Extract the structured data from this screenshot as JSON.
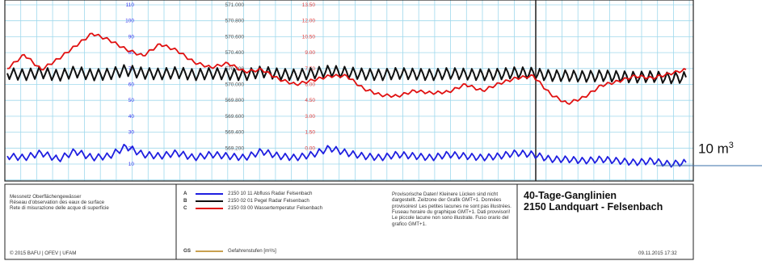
{
  "chart_data": {
    "type": "line",
    "title": "40-Tage-Ganglinien",
    "subtitle": "2150 Landquart - Felsenbach",
    "left_axis_ticks": [
      "110",
      "100",
      "90",
      "80",
      "70",
      "60",
      "50",
      "40",
      "30",
      "20",
      "10"
    ],
    "middle_axis_ticks": [
      "571.000",
      "570.800",
      "570.600",
      "570.400",
      "570.200",
      "570.000",
      "569.800",
      "569.600",
      "569.400",
      "569.200"
    ],
    "right_axis_ticks": [
      "13.50",
      "12.00",
      "10.50",
      "9.00",
      "7.50",
      "6.00",
      "4.50",
      "3.00",
      "1.50",
      "0.00"
    ],
    "x_range": [
      0,
      40
    ],
    "left_ylim": [
      0,
      110
    ],
    "series": [
      {
        "name": "2150 10 11 Abfluss Radar Felsenbach",
        "color": "#1f1fe0",
        "axis": "left",
        "x": [
          0,
          1,
          2,
          3,
          4,
          5,
          6,
          7,
          8,
          9,
          10,
          11,
          12,
          13,
          14,
          15,
          16,
          17,
          18,
          19,
          20,
          21,
          22,
          23,
          24,
          25,
          26,
          27,
          28,
          29,
          30,
          31,
          32,
          33,
          34,
          35,
          36,
          37,
          38,
          39,
          40
        ],
        "values": [
          15,
          14,
          17,
          13,
          18,
          14,
          15,
          21,
          16,
          15,
          17,
          14,
          16,
          15,
          14,
          18,
          15,
          14,
          16,
          20,
          17,
          15,
          14,
          16,
          15,
          14,
          16,
          15,
          14,
          15,
          17,
          16,
          13,
          13,
          12,
          13,
          12,
          11,
          12,
          10,
          11
        ]
      },
      {
        "name": "2150 02 01 Pegel Radar Felsenbach",
        "color": "#111111",
        "axis": "middle",
        "x": [
          0,
          1,
          2,
          3,
          4,
          5,
          6,
          7,
          8,
          9,
          10,
          11,
          12,
          13,
          14,
          15,
          16,
          17,
          18,
          19,
          20,
          21,
          22,
          23,
          24,
          25,
          26,
          27,
          28,
          29,
          30,
          31,
          32,
          33,
          34,
          35,
          36,
          37,
          38,
          39,
          40
        ],
        "values": [
          570.14,
          570.12,
          570.15,
          570.11,
          570.16,
          570.12,
          570.13,
          570.18,
          570.14,
          570.13,
          570.15,
          570.12,
          570.14,
          570.13,
          570.12,
          570.16,
          570.13,
          570.12,
          570.14,
          570.17,
          570.15,
          570.13,
          570.12,
          570.14,
          570.13,
          570.12,
          570.14,
          570.13,
          570.12,
          570.13,
          570.15,
          570.14,
          570.11,
          570.11,
          570.1,
          570.11,
          570.1,
          570.09,
          570.1,
          570.08,
          570.09
        ]
      },
      {
        "name": "2150 03 00 Wassertemperatur Felsenbach",
        "color": "#e01010",
        "axis": "right",
        "x": [
          0,
          1,
          2,
          3,
          4,
          5,
          6,
          7,
          8,
          9,
          10,
          11,
          12,
          13,
          14,
          15,
          16,
          17,
          18,
          19,
          20,
          21,
          22,
          23,
          24,
          25,
          26,
          27,
          28,
          29,
          30,
          31,
          32,
          33,
          34,
          35,
          36,
          37,
          38,
          39,
          40
        ],
        "values": [
          7.5,
          8.8,
          7.4,
          8.4,
          9.6,
          10.8,
          10.2,
          9.3,
          8.7,
          9.8,
          9.2,
          8.1,
          7.6,
          8.0,
          7.2,
          7.4,
          6.5,
          6.0,
          6.4,
          6.8,
          6.8,
          5.6,
          5.0,
          4.9,
          5.4,
          5.2,
          5.3,
          6.0,
          5.4,
          6.1,
          6.6,
          6.8,
          5.1,
          4.2,
          4.8,
          5.9,
          6.3,
          6.8,
          6.6,
          7.0,
          7.4
        ]
      }
    ],
    "annotations": [
      "10 m³"
    ],
    "grid": true
  },
  "legend": {
    "items": [
      {
        "code": "A",
        "label": "2150 10 11 Abfluss Radar Felsenbach",
        "color": "#1f1fe0"
      },
      {
        "code": "B",
        "label": "2150 02 01 Pegel Radar Felsenbach",
        "color": "#111111"
      },
      {
        "code": "C",
        "label": "2150 03 00 Wassertemperatur Felsenbach",
        "color": "#e01010"
      }
    ],
    "gs_code": "GS",
    "gs_label": "Gefahrenstufen [m³/s]",
    "gs_color": "#c8a050"
  },
  "info": {
    "network": "Messnetz Oberflächengewässer",
    "network_fr": "Réseau d'observation des eaux de surface",
    "network_it": "Rete di misurazione delle acque di superficie",
    "provisional": "Provisorische Daten! Kleinere Lücken sind nicht dargestellt. Zeitzone der Grafik GMT+1. Données provisoires! Les petites lacunes ne sont pas illustrées. Fuseau horaire du graphique GMT+1. Dati provvisori! Le piccole lacune non sono illustrate. Fuso orario del grafico GMT+1.",
    "copyright": "© 2015 BAFU | OFEV | UFAM",
    "timestamp": "09.11.2015 17:32"
  },
  "annotation_label": "10 m",
  "annotation_sup": "3"
}
